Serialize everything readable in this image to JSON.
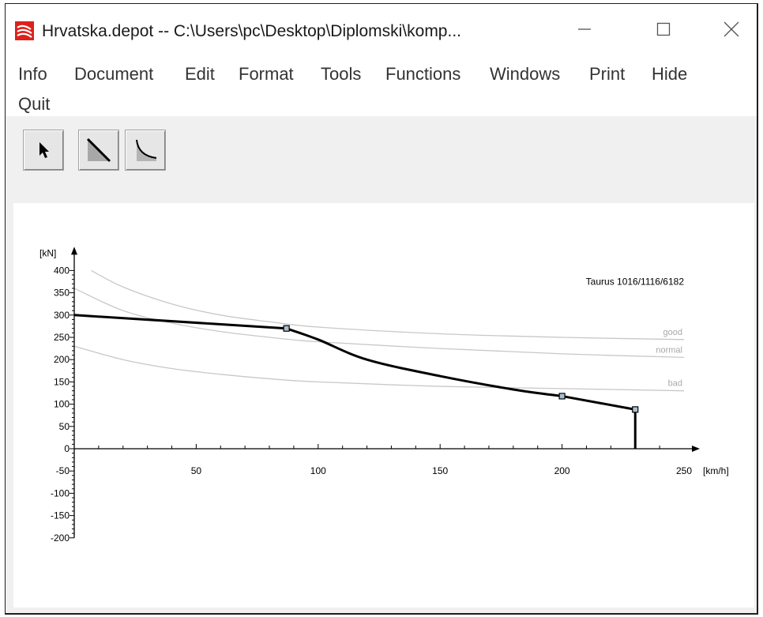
{
  "window": {
    "title": "Hrvatska.depot  --  C:\\Users\\pc\\Desktop\\Diplomski\\komp...",
    "icon": "depot-app-icon",
    "controls": [
      "minimize-icon",
      "maximize-icon",
      "close-icon"
    ]
  },
  "menu": {
    "items": [
      "Info",
      "Document",
      "Edit",
      "Format",
      "Tools",
      "Functions",
      "Windows",
      "Print",
      "Hide",
      "Quit"
    ]
  },
  "toolbar": {
    "tools": [
      {
        "icon": "arrow-pointer-icon"
      },
      {
        "icon": "line-tool-icon"
      },
      {
        "icon": "curve-tool-icon"
      }
    ]
  },
  "colors": {
    "traction_curve": "#000000",
    "reference_curves": "#c8c8c8",
    "toolbar_bg": "#f0f0f0",
    "app_icon": "#e0201b"
  },
  "chart_data": {
    "type": "line",
    "title": "Taurus 1016/1116/6182",
    "xlabel": "[km/h]",
    "ylabel": "[kN]",
    "xlim": [
      0,
      250
    ],
    "ylim": [
      -200,
      400
    ],
    "x_ticks": [
      50,
      100,
      150,
      200,
      250
    ],
    "y_ticks": [
      400,
      350,
      300,
      250,
      200,
      150,
      100,
      50,
      0,
      -50,
      -100,
      -150,
      -200
    ],
    "grid": false,
    "series": [
      {
        "points": [
          [
            0,
            300
          ],
          [
            87,
            270
          ],
          [
            100,
            245
          ],
          [
            120,
            200
          ],
          [
            150,
            163
          ],
          [
            180,
            133
          ],
          [
            200,
            118
          ],
          [
            230,
            88
          ],
          [
            230,
            0
          ]
        ],
        "control_points": [
          [
            87,
            270
          ],
          [
            200,
            118
          ],
          [
            230,
            88
          ]
        ]
      }
    ],
    "reference_curves": [
      {
        "name": "good",
        "points": [
          [
            7,
            400
          ],
          [
            20,
            363
          ],
          [
            40,
            325
          ],
          [
            60,
            300
          ],
          [
            80,
            285
          ],
          [
            100,
            273
          ],
          [
            150,
            258
          ],
          [
            200,
            250
          ],
          [
            250,
            245
          ]
        ]
      },
      {
        "name": "normal",
        "points": [
          [
            0,
            360
          ],
          [
            20,
            310
          ],
          [
            40,
            282
          ],
          [
            60,
            263
          ],
          [
            80,
            250
          ],
          [
            100,
            240
          ],
          [
            150,
            225
          ],
          [
            200,
            213
          ],
          [
            250,
            205
          ]
        ]
      },
      {
        "name": "bad",
        "points": [
          [
            0,
            230
          ],
          [
            20,
            200
          ],
          [
            40,
            180
          ],
          [
            60,
            167
          ],
          [
            80,
            157
          ],
          [
            100,
            150
          ],
          [
            150,
            140
          ],
          [
            200,
            135
          ],
          [
            250,
            130
          ]
        ]
      }
    ]
  }
}
